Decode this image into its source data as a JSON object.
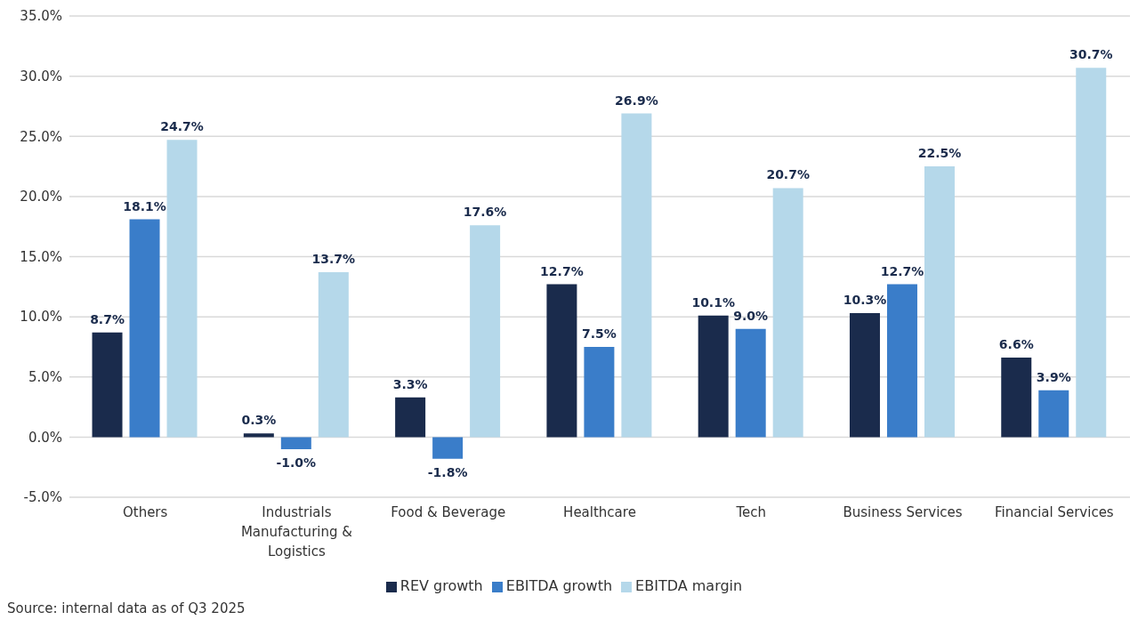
{
  "chart_data": {
    "type": "bar",
    "categories": [
      "Others",
      "Industrials Manufacturing & Logistics",
      "Food & Beverage",
      "Healthcare",
      "Tech",
      "Business Services",
      "Financial Services"
    ],
    "series": [
      {
        "name": "REV growth",
        "color": "#1a2b4c",
        "values": [
          8.7,
          0.3,
          3.3,
          12.7,
          10.1,
          10.3,
          6.6
        ],
        "value_labels": [
          "8.7%",
          "0.3%",
          "3.3%",
          "12.7%",
          "10.1%",
          "10.3%",
          "6.6%"
        ]
      },
      {
        "name": "EBITDA growth",
        "color": "#3a7dc9",
        "values": [
          18.1,
          -1.0,
          -1.8,
          7.5,
          9.0,
          12.7,
          3.9
        ],
        "value_labels": [
          "18.1%",
          "-1.0%",
          "-1.8%",
          "7.5%",
          "9.0%",
          "12.7%",
          "3.9%"
        ]
      },
      {
        "name": "EBITDA margin",
        "color": "#b5d8ea",
        "values": [
          24.7,
          13.7,
          17.6,
          26.9,
          20.7,
          22.5,
          30.7
        ],
        "value_labels": [
          "24.7%",
          "13.7%",
          "17.6%",
          "26.9%",
          "20.7%",
          "22.5%",
          "30.7%"
        ]
      }
    ],
    "ylim": [
      -5,
      35
    ],
    "yticks": [
      {
        "value": -5,
        "label": "-5.0%"
      },
      {
        "value": 0,
        "label": "0.0%"
      },
      {
        "value": 5,
        "label": "5.0%"
      },
      {
        "value": 10,
        "label": "10.0%"
      },
      {
        "value": 15,
        "label": "15.0%"
      },
      {
        "value": 20,
        "label": "20.0%"
      },
      {
        "value": 25,
        "label": "25.0%"
      },
      {
        "value": 30,
        "label": "30.0%"
      },
      {
        "value": 35,
        "label": "35.0%"
      }
    ],
    "grid": "y",
    "legend": "bottom",
    "annotations": [
      "Source: internal data as of Q3 2025"
    ]
  }
}
